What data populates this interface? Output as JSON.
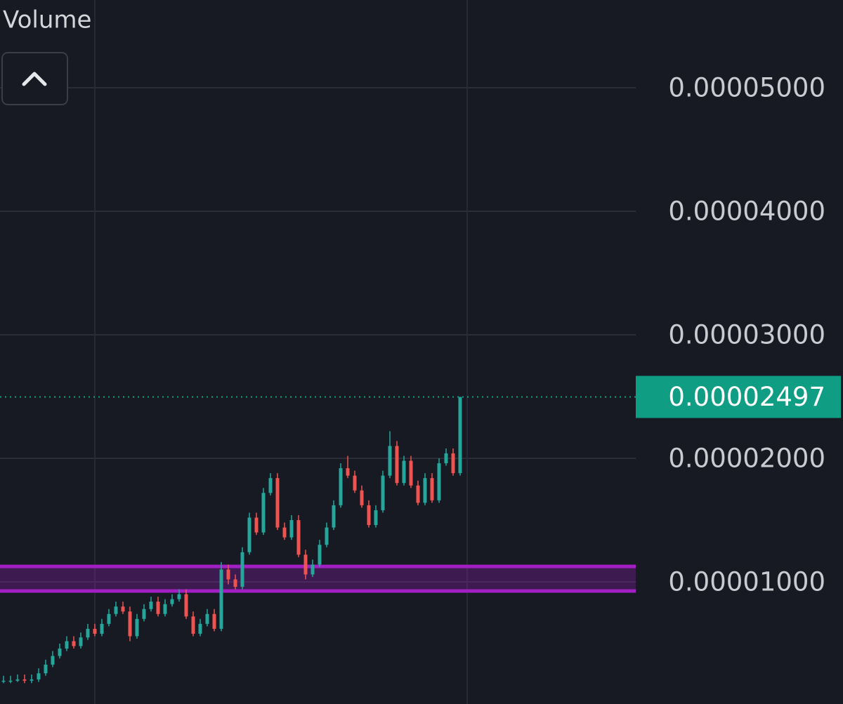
{
  "chart_data": {
    "type": "candlestick",
    "indicator_label": "Volume",
    "open": [
      2e-06,
      2e-06,
      2e-06,
      2.1e-06,
      2e-06,
      2.1e-06,
      2.6e-06,
      3.3e-06,
      4e-06,
      4.6e-06,
      5.2e-06,
      4.8e-06,
      5.5e-06,
      6.2e-06,
      5.8e-06,
      6.6e-06,
      7.4e-06,
      8e-06,
      7.6e-06,
      5.6e-06,
      7e-06,
      7.8e-06,
      8.4e-06,
      7.4e-06,
      8.2e-06,
      8.6e-06,
      9e-06,
      7.2e-06,
      5.8e-06,
      6.6e-06,
      7.4e-06,
      6.2e-06,
      1.1e-05,
      1.02e-05,
      9.6e-06,
      1.24e-05,
      1.52e-05,
      1.4e-05,
      1.72e-05,
      1.84e-05,
      1.44e-05,
      1.36e-05,
      1.5e-05,
      1.22e-05,
      1.06e-05,
      1.14e-05,
      1.3e-05,
      1.44e-05,
      1.62e-05,
      1.92e-05,
      1.86e-05,
      1.74e-05,
      1.62e-05,
      1.46e-05,
      1.58e-05,
      1.86e-05,
      2.1e-05,
      1.8e-05,
      1.98e-05,
      1.78e-05,
      1.64e-05,
      1.84e-05,
      1.66e-05,
      1.96e-05,
      2.04e-05,
      1.88e-05
    ],
    "high": [
      2.4e-06,
      2.4e-06,
      2.5e-06,
      2.5e-06,
      2.5e-06,
      3e-06,
      3.7e-06,
      4.4e-06,
      5e-06,
      5.6e-06,
      5.6e-06,
      5.9e-06,
      6.6e-06,
      6.6e-06,
      7e-06,
      7.8e-06,
      8.4e-06,
      8.4e-06,
      8e-06,
      7.4e-06,
      8.2e-06,
      8.8e-06,
      8.8e-06,
      8.6e-06,
      9e-06,
      9.4e-06,
      9.4e-06,
      7.6e-06,
      7e-06,
      7.8e-06,
      7.8e-06,
      1.16e-05,
      1.14e-05,
      1.06e-05,
      1.28e-05,
      1.56e-05,
      1.56e-05,
      1.76e-05,
      1.88e-05,
      1.88e-05,
      1.48e-05,
      1.54e-05,
      1.54e-05,
      1.26e-05,
      1.18e-05,
      1.34e-05,
      1.48e-05,
      1.66e-05,
      1.96e-05,
      2.02e-05,
      1.9e-05,
      1.78e-05,
      1.66e-05,
      1.62e-05,
      1.9e-05,
      2.22e-05,
      2.14e-05,
      2.02e-05,
      2.02e-05,
      1.82e-05,
      1.88e-05,
      1.88e-05,
      2e-05,
      2.08e-05,
      2.08e-05,
      2.497e-05
    ],
    "low": [
      1.8e-06,
      1.8e-06,
      1.9e-06,
      1.8e-06,
      1.8e-06,
      1.9e-06,
      2.4e-06,
      3.1e-06,
      3.8e-06,
      4.4e-06,
      4.6e-06,
      4.6e-06,
      5.3e-06,
      5.6e-06,
      5.6e-06,
      6.4e-06,
      7.2e-06,
      7.4e-06,
      5.2e-06,
      5.4e-06,
      6.8e-06,
      7.6e-06,
      7.2e-06,
      7.2e-06,
      8e-06,
      8.4e-06,
      7e-06,
      5.6e-06,
      5.6e-06,
      6.4e-06,
      6e-06,
      6e-06,
      9.8e-06,
      9.4e-06,
      9.4e-06,
      1.22e-05,
      1.38e-05,
      1.38e-05,
      1.7e-05,
      1.42e-05,
      1.34e-05,
      1.34e-05,
      1.2e-05,
      1.02e-05,
      1.04e-05,
      1.12e-05,
      1.28e-05,
      1.42e-05,
      1.6e-05,
      1.84e-05,
      1.72e-05,
      1.6e-05,
      1.44e-05,
      1.44e-05,
      1.56e-05,
      1.84e-05,
      1.78e-05,
      1.78e-05,
      1.76e-05,
      1.62e-05,
      1.62e-05,
      1.64e-05,
      1.64e-05,
      1.94e-05,
      1.86e-05,
      1.86e-05
    ],
    "close": [
      2e-06,
      2e-06,
      2.1e-06,
      2e-06,
      2.1e-06,
      2.6e-06,
      3.3e-06,
      4e-06,
      4.6e-06,
      5.2e-06,
      4.8e-06,
      5.5e-06,
      6.2e-06,
      5.8e-06,
      6.6e-06,
      7.4e-06,
      8e-06,
      7.6e-06,
      5.6e-06,
      7e-06,
      7.8e-06,
      8.4e-06,
      7.4e-06,
      8.2e-06,
      8.6e-06,
      9e-06,
      7.2e-06,
      5.8e-06,
      6.6e-06,
      7.4e-06,
      6.2e-06,
      1.1e-05,
      1.02e-05,
      9.6e-06,
      1.24e-05,
      1.52e-05,
      1.4e-05,
      1.72e-05,
      1.84e-05,
      1.44e-05,
      1.36e-05,
      1.5e-05,
      1.22e-05,
      1.06e-05,
      1.14e-05,
      1.3e-05,
      1.44e-05,
      1.62e-05,
      1.92e-05,
      1.86e-05,
      1.74e-05,
      1.62e-05,
      1.46e-05,
      1.58e-05,
      1.86e-05,
      2.1e-05,
      1.8e-05,
      1.98e-05,
      1.78e-05,
      1.64e-05,
      1.84e-05,
      1.66e-05,
      1.96e-05,
      2.04e-05,
      1.88e-05,
      2.497e-05
    ],
    "up_color": "#26a69a",
    "down_color": "#ef5350",
    "last_price": 2.497e-05,
    "last_price_color": "#0f9e83",
    "zone": [
      9.26e-06,
      1.125e-05
    ],
    "zone_color": "#a21fc4",
    "ylim": [
      1.14e-07,
      5.71e-05
    ],
    "yticks": [
      {
        "value": 5e-05,
        "label": "0.00005000"
      },
      {
        "value": 4e-05,
        "label": "0.00004000"
      },
      {
        "value": 3e-05,
        "label": "0.00003000"
      },
      {
        "value": 2e-05,
        "label": "0.00002000"
      },
      {
        "value": 1e-05,
        "label": "0.00001000"
      }
    ],
    "grid": true
  }
}
